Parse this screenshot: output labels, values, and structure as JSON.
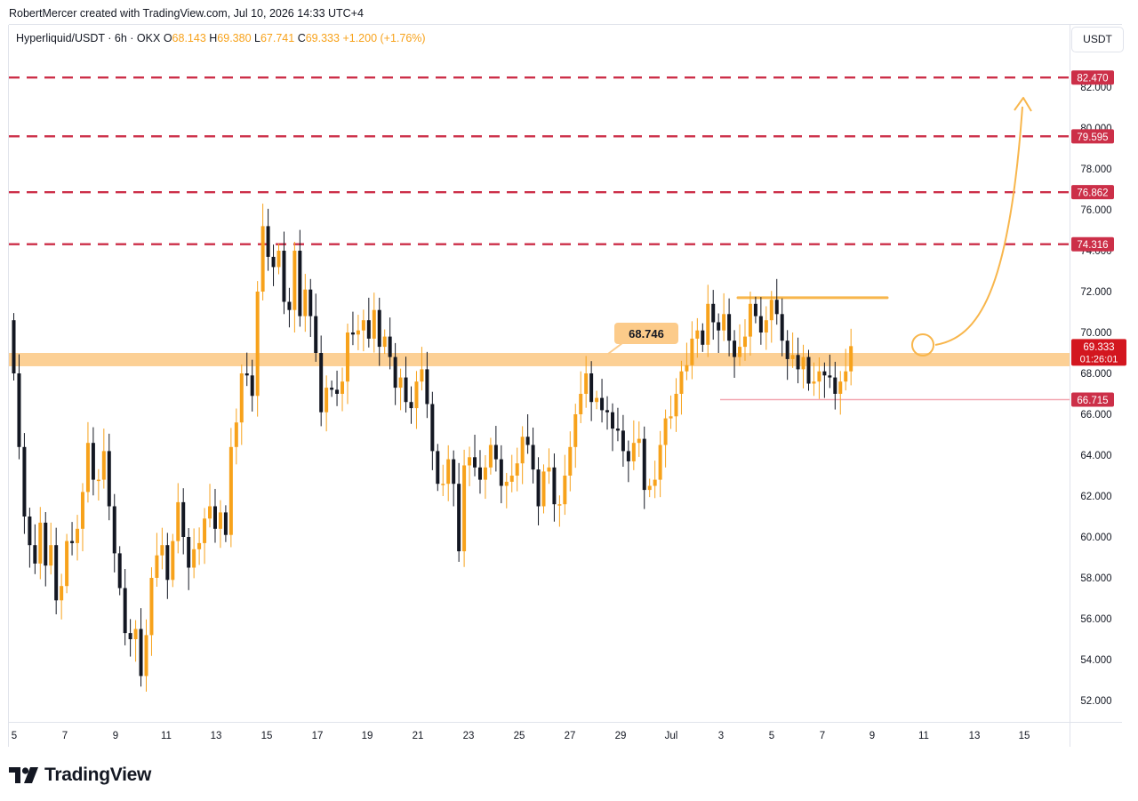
{
  "header": {
    "attribution": "RobertMercer created with TradingView.com, Jul 10, 2026 14:33 UTC+4"
  },
  "legend": {
    "symbol": "Hyperliquid/USDT · 6h · OKX",
    "o_label": "O",
    "o_value": "68.143",
    "h_label": "H",
    "h_value": "69.380",
    "l_label": "L",
    "l_value": "67.741",
    "c_label": "C",
    "c_value": "69.333",
    "change": "+1.200 (+1.76%)"
  },
  "currency_button": "USDT",
  "brand": {
    "name": "TradingView",
    "icon": "tradingview-logo-icon"
  },
  "colors": {
    "up": "#f7a21b",
    "down": "#131722",
    "resistance": "#cc2f48",
    "zone": "#fccb8a",
    "support": "#f3a7b1",
    "arrow": "#f8b64c"
  },
  "chart_data": {
    "type": "candlestick",
    "x_ticks": [
      "5",
      "7",
      "9",
      "11",
      "13",
      "15",
      "17",
      "19",
      "21",
      "23",
      "25",
      "27",
      "29",
      "Jul",
      "3",
      "5",
      "7",
      "9",
      "11",
      "13",
      "15"
    ],
    "y_ticks": [
      "82.000",
      "80.000",
      "78.000",
      "76.000",
      "74.000",
      "72.000",
      "70.000",
      "68.000",
      "66.000",
      "64.000",
      "62.000",
      "60.000",
      "58.000",
      "56.000",
      "54.000",
      "52.000"
    ],
    "ylim": [
      50.9,
      85.0
    ],
    "resistance_levels": [
      {
        "value": 82.47,
        "label": "82.470"
      },
      {
        "value": 79.595,
        "label": "79.595"
      },
      {
        "value": 76.862,
        "label": "76.862"
      },
      {
        "value": 74.316,
        "label": "74.316"
      }
    ],
    "support_level": {
      "value": 66.715,
      "label": "66.715"
    },
    "zone": {
      "low": 68.35,
      "high": 69.0,
      "label": "68.746"
    },
    "range_top_line": 71.7,
    "last_price": {
      "value": 69.333,
      "label": "69.333",
      "countdown": "01:26:01"
    },
    "closes": [
      68.0,
      64.4,
      61.0,
      59.6,
      58.7,
      60.7,
      58.6,
      59.6,
      56.9,
      57.6,
      59.8,
      59.7,
      60.4,
      62.2,
      64.6,
      62.8,
      62.8,
      64.2,
      61.5,
      59.2,
      57.5,
      55.3,
      55.0,
      55.5,
      53.2,
      55.2,
      58.0,
      59.1,
      59.6,
      57.9,
      59.8,
      61.7,
      60.0,
      58.5,
      59.4,
      59.7,
      60.9,
      61.5,
      60.4,
      61.2,
      60.1,
      64.4,
      65.6,
      68.0,
      67.9,
      66.9,
      72.0,
      75.2,
      73.7,
      73.2,
      74.0,
      71.5,
      71.1,
      74.0,
      70.8,
      72.1,
      70.8,
      69.0,
      66.1,
      67.3,
      67.2,
      67.0,
      67.6,
      70.0,
      69.9,
      70.1,
      70.6,
      69.7,
      71.1,
      69.3,
      69.8,
      68.8,
      67.3,
      67.8,
      66.6,
      66.3,
      67.6,
      68.2,
      66.5,
      64.2,
      62.6,
      62.6,
      63.8,
      62.6,
      59.3,
      63.5,
      63.9,
      63.4,
      62.8,
      63.4,
      64.5,
      63.8,
      62.5,
      62.7,
      63.0,
      63.6,
      64.9,
      64.5,
      63.3,
      61.5,
      63.2,
      63.4,
      61.6,
      61.6,
      63.0,
      64.4,
      66.0,
      67.0,
      68.0,
      66.6,
      66.8,
      66.2,
      66.1,
      65.3,
      65.2,
      64.2,
      63.7,
      64.6,
      64.8,
      62.3,
      62.5,
      62.8,
      64.5,
      65.8,
      65.9,
      67.0,
      68.1,
      68.4,
      69.7,
      70.1,
      69.4,
      71.4,
      70.5,
      70.1,
      70.9,
      69.6,
      68.8,
      69.3,
      69.8,
      71.4,
      70.8,
      70.0,
      70.6,
      71.6,
      70.9,
      69.6,
      68.7,
      68.9,
      68.2,
      68.8,
      67.5,
      67.6,
      68.1,
      67.9,
      67.8,
      67.0,
      67.6,
      68.1,
      69.333
    ]
  }
}
